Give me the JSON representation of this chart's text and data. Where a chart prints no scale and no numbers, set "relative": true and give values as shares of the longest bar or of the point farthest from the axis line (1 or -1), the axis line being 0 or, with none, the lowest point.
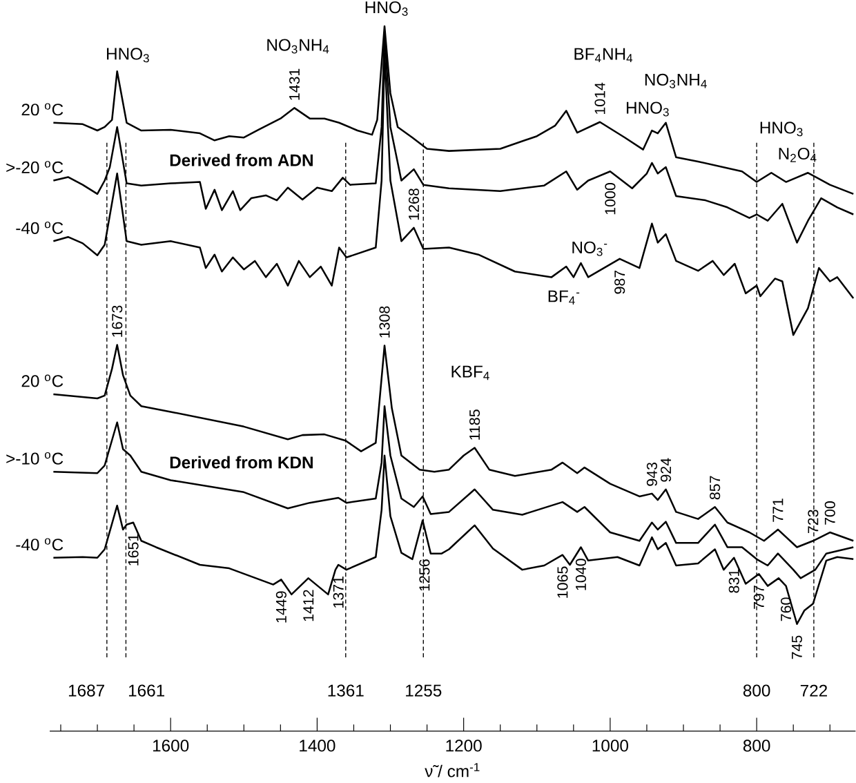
{
  "chart_data": {
    "type": "line",
    "relative": true,
    "xlabel": "ν̃ / cm$^{-1}$",
    "xlim": [
      1765,
      665
    ],
    "xticks": [
      {
        "value": 1750,
        "label": null
      },
      {
        "value": 1700,
        "label": null
      },
      {
        "value": 1650,
        "label": null
      },
      1600,
      {
        "value": 1550,
        "label": null
      },
      {
        "value": 1500,
        "label": null
      },
      {
        "value": 1450,
        "label": null
      },
      1400,
      {
        "value": 1350,
        "label": null
      },
      {
        "value": 1300,
        "label": null
      },
      {
        "value": 1250,
        "label": null
      },
      1200,
      {
        "value": 1150,
        "label": null
      },
      {
        "value": 1100,
        "label": null
      },
      {
        "value": 1050,
        "label": null
      },
      1000,
      {
        "value": 950,
        "label": null
      },
      {
        "value": 900,
        "label": null
      },
      {
        "value": 850,
        "label": null
      },
      800,
      {
        "value": 750,
        "label": null
      },
      {
        "value": 700,
        "label": null
      }
    ],
    "series": [
      {
        "name": "20 $^{o}$C",
        "color": "#000000",
        "x": [
          1760,
          1720,
          1700,
          1690,
          1680,
          1673,
          1660,
          1640,
          1600,
          1560,
          1540,
          1520,
          1500,
          1480,
          1450,
          1431,
          1410,
          1390,
          1370,
          1345,
          1325,
          1318,
          1308,
          1300,
          1290,
          1270,
          1250,
          1220,
          1150,
          1100,
          1075,
          1060,
          1045,
          1014,
          980,
          955,
          943,
          935,
          924,
          910,
          880,
          820,
          800,
          780,
          760,
          730,
          700,
          668
        ],
        "values": [
          0.863,
          0.861,
          0.852,
          0.857,
          0.867,
          0.936,
          0.863,
          0.852,
          0.853,
          0.848,
          0.838,
          0.844,
          0.842,
          0.853,
          0.869,
          0.884,
          0.869,
          0.869,
          0.863,
          0.852,
          0.846,
          0.867,
          1.0,
          0.905,
          0.857,
          0.842,
          0.826,
          0.823,
          0.826,
          0.844,
          0.859,
          0.88,
          0.849,
          0.864,
          0.842,
          0.825,
          0.852,
          0.848,
          0.863,
          0.814,
          0.808,
          0.794,
          0.779,
          0.792,
          0.779,
          0.792,
          0.775,
          0.762
        ]
      },
      {
        "name": ">-20 $^{o}$C",
        "color": "#000000",
        "x": [
          1760,
          1740,
          1720,
          1700,
          1690,
          1683,
          1673,
          1660,
          1640,
          1600,
          1560,
          1552,
          1540,
          1530,
          1515,
          1505,
          1490,
          1470,
          1455,
          1440,
          1420,
          1400,
          1380,
          1365,
          1355,
          1320,
          1312,
          1308,
          1300,
          1285,
          1268,
          1255,
          1220,
          1150,
          1090,
          1060,
          1045,
          1030,
          1000,
          970,
          950,
          943,
          935,
          924,
          910,
          870,
          840,
          810,
          800,
          785,
          765,
          745,
          730,
          712,
          690,
          668
        ],
        "values": [
          0.781,
          0.786,
          0.775,
          0.762,
          0.781,
          0.8,
          0.857,
          0.777,
          0.774,
          0.777,
          0.779,
          0.741,
          0.768,
          0.739,
          0.766,
          0.739,
          0.756,
          0.76,
          0.753,
          0.771,
          0.754,
          0.771,
          0.766,
          0.785,
          0.775,
          0.777,
          0.857,
          0.991,
          0.857,
          0.781,
          0.797,
          0.775,
          0.77,
          0.766,
          0.774,
          0.794,
          0.768,
          0.781,
          0.794,
          0.77,
          0.791,
          0.806,
          0.791,
          0.8,
          0.759,
          0.753,
          0.743,
          0.728,
          0.733,
          0.724,
          0.748,
          0.693,
          0.724,
          0.756,
          0.743,
          0.733
        ]
      },
      {
        "name": "-40 $^{o}$C",
        "color": "#000000",
        "x": [
          1760,
          1740,
          1720,
          1700,
          1690,
          1673,
          1660,
          1640,
          1600,
          1560,
          1552,
          1540,
          1530,
          1515,
          1500,
          1485,
          1470,
          1455,
          1440,
          1425,
          1410,
          1395,
          1380,
          1370,
          1360,
          1320,
          1312,
          1308,
          1300,
          1285,
          1268,
          1255,
          1220,
          1180,
          1130,
          1080,
          1060,
          1050,
          1040,
          1030,
          987,
          960,
          943,
          935,
          924,
          910,
          880,
          860,
          845,
          830,
          815,
          800,
          795,
          775,
          765,
          750,
          730,
          715,
          700,
          690,
          668
        ],
        "values": [
          0.695,
          0.701,
          0.692,
          0.675,
          0.69,
          0.791,
          0.695,
          0.69,
          0.695,
          0.686,
          0.657,
          0.676,
          0.652,
          0.672,
          0.655,
          0.667,
          0.644,
          0.663,
          0.632,
          0.667,
          0.644,
          0.659,
          0.632,
          0.686,
          0.672,
          0.686,
          0.781,
          0.962,
          0.781,
          0.695,
          0.714,
          0.684,
          0.686,
          0.676,
          0.652,
          0.644,
          0.659,
          0.644,
          0.664,
          0.644,
          0.67,
          0.657,
          0.72,
          0.693,
          0.705,
          0.667,
          0.653,
          0.667,
          0.647,
          0.663,
          0.621,
          0.632,
          0.617,
          0.642,
          0.638,
          0.562,
          0.6,
          0.657,
          0.638,
          0.644,
          0.614
        ]
      },
      {
        "name": "20 $^{o}$C",
        "color": "#000000",
        "x": [
          1760,
          1700,
          1690,
          1680,
          1673,
          1665,
          1655,
          1640,
          1600,
          1500,
          1440,
          1420,
          1390,
          1361,
          1340,
          1320,
          1308,
          1298,
          1285,
          1260,
          1240,
          1220,
          1200,
          1185,
          1165,
          1130,
          1080,
          1065,
          1045,
          1035,
          1000,
          960,
          943,
          935,
          924,
          910,
          880,
          857,
          840,
          810,
          790,
          771,
          745,
          723,
          700,
          668
        ],
        "values": [
          0.478,
          0.472,
          0.476,
          0.514,
          0.548,
          0.505,
          0.476,
          0.461,
          0.453,
          0.432,
          0.414,
          0.42,
          0.421,
          0.412,
          0.397,
          0.409,
          0.547,
          0.458,
          0.391,
          0.371,
          0.368,
          0.371,
          0.391,
          0.402,
          0.371,
          0.362,
          0.371,
          0.381,
          0.366,
          0.374,
          0.351,
          0.333,
          0.337,
          0.328,
          0.343,
          0.311,
          0.301,
          0.318,
          0.296,
          0.282,
          0.27,
          0.286,
          0.261,
          0.27,
          0.282,
          0.27
        ]
      },
      {
        "name": ">-10 $^{o}$C",
        "color": "#000000",
        "x": [
          1760,
          1700,
          1690,
          1673,
          1665,
          1655,
          1640,
          1600,
          1500,
          1440,
          1410,
          1371,
          1360,
          1320,
          1312,
          1308,
          1300,
          1285,
          1268,
          1256,
          1245,
          1220,
          1185,
          1160,
          1120,
          1065,
          1045,
          1035,
          1000,
          960,
          943,
          935,
          924,
          910,
          880,
          857,
          840,
          820,
          800,
          785,
          771,
          750,
          740,
          720,
          705,
          668
        ],
        "values": [
          0.368,
          0.366,
          0.377,
          0.438,
          0.4,
          0.391,
          0.368,
          0.356,
          0.339,
          0.316,
          0.324,
          0.331,
          0.324,
          0.33,
          0.381,
          0.461,
          0.391,
          0.33,
          0.318,
          0.333,
          0.308,
          0.311,
          0.343,
          0.314,
          0.307,
          0.325,
          0.311,
          0.318,
          0.282,
          0.27,
          0.296,
          0.286,
          0.297,
          0.267,
          0.267,
          0.293,
          0.261,
          0.261,
          0.244,
          0.235,
          0.252,
          0.229,
          0.217,
          0.229,
          0.252,
          0.261
        ]
      },
      {
        "name": "-40 $^{o}$C",
        "color": "#000000",
        "x": [
          1760,
          1720,
          1700,
          1690,
          1673,
          1665,
          1660,
          1651,
          1640,
          1620,
          1560,
          1520,
          1460,
          1449,
          1435,
          1412,
          1385,
          1375,
          1371,
          1360,
          1320,
          1312,
          1308,
          1300,
          1285,
          1270,
          1256,
          1245,
          1230,
          1220,
          1185,
          1160,
          1120,
          1090,
          1065,
          1055,
          1040,
          1030,
          990,
          960,
          943,
          935,
          924,
          910,
          880,
          857,
          845,
          831,
          815,
          797,
          785,
          770,
          760,
          745,
          735,
          723,
          705,
          690,
          668
        ],
        "values": [
          0.246,
          0.247,
          0.246,
          0.258,
          0.32,
          0.286,
          0.293,
          0.296,
          0.27,
          0.261,
          0.236,
          0.231,
          0.208,
          0.215,
          0.194,
          0.217,
          0.194,
          0.229,
          0.236,
          0.229,
          0.247,
          0.314,
          0.391,
          0.305,
          0.253,
          0.244,
          0.299,
          0.252,
          0.252,
          0.258,
          0.292,
          0.259,
          0.229,
          0.235,
          0.25,
          0.236,
          0.261,
          0.242,
          0.247,
          0.235,
          0.275,
          0.258,
          0.267,
          0.235,
          0.238,
          0.258,
          0.229,
          0.246,
          0.209,
          0.223,
          0.206,
          0.217,
          0.206,
          0.152,
          0.171,
          0.181,
          0.242,
          0.247,
          0.244
        ]
      }
    ],
    "ref_lines": [
      {
        "axis": "x",
        "value": 1687,
        "label": "1687",
        "color": "#000000",
        "line_style": "dashed"
      },
      {
        "axis": "x",
        "value": 1661,
        "label": "1661",
        "color": "#000000",
        "line_style": "dashed"
      },
      {
        "axis": "x",
        "value": 1361,
        "label": "1361",
        "color": "#000000",
        "line_style": "dashed"
      },
      {
        "axis": "x",
        "value": 1255,
        "label": "1255",
        "color": "#000000",
        "line_style": "dashed"
      },
      {
        "axis": "x",
        "value": 800,
        "label": "800",
        "color": "#000000",
        "line_style": "dashed"
      },
      {
        "axis": "x",
        "value": 722,
        "label": "722",
        "color": "#000000",
        "line_style": "dashed"
      }
    ],
    "annotations": [
      "HNO$_{3}$",
      "NO$_{3}$NH$_{4}$",
      "HNO$_{3}$",
      "BF$_{4}$NH$_{4}$",
      "NO$_{3}$NH$_{4}$",
      "HNO$_{3}$",
      "HNO$_{3}$",
      "N$_{2}$O$_{4}$",
      "NO$_{3}$$^{-}$",
      "BF$_{4}$$^{-}$",
      "KBF$_{4}$",
      "Derived from ADN",
      "Derived from KDN",
      {
        "text": "1431",
        "x": 1431,
        "y": 0.884
      },
      {
        "text": "1268",
        "x": 1268,
        "y": 0.714
      },
      {
        "text": "1014",
        "x": 1014,
        "y": 0.864
      },
      {
        "text": "1673",
        "x": 1673,
        "y": 0.548
      },
      {
        "text": "1308",
        "x": 1308,
        "y": 0.547
      },
      {
        "text": "1185",
        "x": 1185,
        "y": 0.402
      },
      {
        "text": "943",
        "x": 943,
        "y": 0.337
      },
      {
        "text": "924",
        "x": 924,
        "y": 0.343
      },
      {
        "text": "857",
        "x": 857,
        "y": 0.318
      },
      {
        "text": "771",
        "x": 771,
        "y": 0.286
      },
      {
        "text": "723",
        "x": 723,
        "y": 0.27
      },
      {
        "text": "700",
        "x": 700,
        "y": 0.282
      },
      {
        "text": "1000",
        "x": 1000,
        "y": 0.794
      },
      {
        "text": "987",
        "x": 987,
        "y": 0.67
      },
      {
        "text": "1651",
        "x": 1651,
        "y": 0.296
      },
      {
        "text": "1449",
        "x": 1449,
        "y": 0.215
      },
      {
        "text": "1412",
        "x": 1412,
        "y": 0.217
      },
      {
        "text": "1371",
        "x": 1371,
        "y": 0.236
      },
      "1256",
      {
        "text": "1065",
        "x": 1065,
        "y": 0.25
      },
      {
        "text": "1040",
        "x": 1040,
        "y": 0.261
      },
      {
        "text": "831",
        "x": 831,
        "y": 0.246
      },
      {
        "text": "797",
        "x": 797,
        "y": 0.223
      },
      {
        "text": "760",
        "x": 760,
        "y": 0.206
      },
      {
        "text": "745",
        "x": 745,
        "y": 0.152
      }
    ]
  }
}
